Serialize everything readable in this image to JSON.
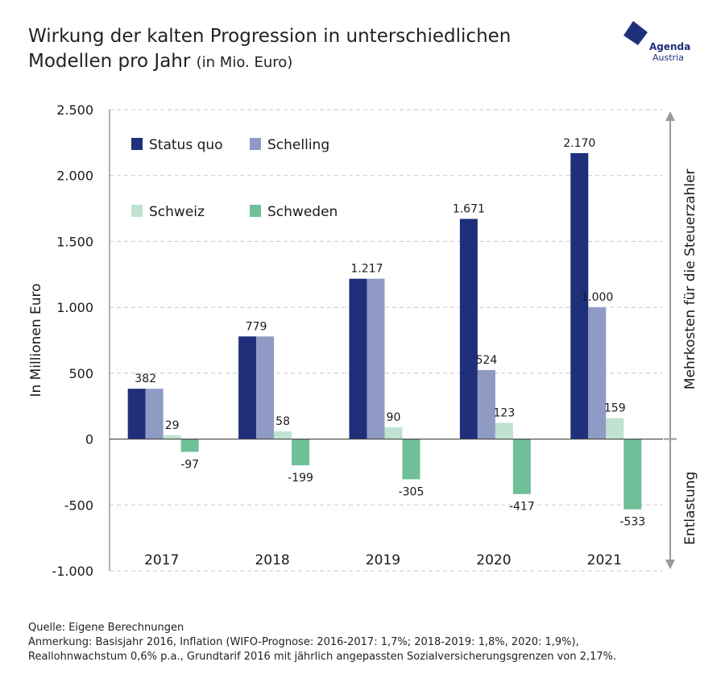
{
  "header": {
    "title_line1": "Wirkung der kalten Progression in unterschiedlichen",
    "title_line2": "Modellen pro Jahr",
    "title_unit": "(in Mio. Euro)"
  },
  "logo": {
    "line1": "Agenda",
    "line2": "Austria"
  },
  "chart_data": {
    "type": "bar",
    "title": "Wirkung der kalten Progression in unterschiedlichen Modellen pro Jahr (in Mio. Euro)",
    "categories": [
      "2017",
      "2018",
      "2019",
      "2020",
      "2021"
    ],
    "series": [
      {
        "name": "Status quo",
        "color": "#1f2f7a",
        "values": [
          382,
          779,
          1217,
          1671,
          2170
        ],
        "labels": [
          "382",
          "779",
          "1.217",
          "1.671",
          "2.170"
        ]
      },
      {
        "name": "Schelling",
        "color": "#8f9ac5",
        "values": [
          382,
          779,
          1217,
          524,
          1000
        ],
        "labels": [
          "",
          "",
          "",
          "524",
          "1.000"
        ]
      },
      {
        "name": "Schweiz",
        "color": "#bfe3d0",
        "values": [
          29,
          58,
          90,
          123,
          159
        ],
        "labels": [
          "29",
          "58",
          "90",
          "123",
          "159"
        ]
      },
      {
        "name": "Schweden",
        "color": "#6fbf98",
        "values": [
          -97,
          -199,
          -305,
          -417,
          -533
        ],
        "labels": [
          "-97",
          "-199",
          "-305",
          "-417",
          "-533"
        ]
      }
    ],
    "ylim": [
      -1000,
      2500
    ],
    "yticks": [
      2500,
      2000,
      1500,
      1000,
      500,
      0,
      -500,
      -1000
    ],
    "ytick_labels": [
      "2.500",
      "2.000",
      "1.500",
      "1.000",
      "500",
      "0",
      "-500",
      "-1.000"
    ],
    "ylabel": "In Millionen Euro",
    "xlabel": "",
    "right_axis_upper_label": "Mehrkosten für die Steuerzahler",
    "right_axis_lower_label": "Entlastung",
    "grid": true,
    "legend_position": "top-left"
  },
  "footer": {
    "source": "Quelle: Eigene Berechnungen",
    "note1": "Anmerkung: Basisjahr 2016, Inflation (WIFO-Prognose: 2016-2017: 1,7%; 2018-2019: 1,8%, 2020: 1,9%),",
    "note2": "Reallohnwachstum 0,6% p.a., Grundtarif 2016 mit jährlich angepassten Sozialversicherungsgrenzen von 2,17%."
  }
}
